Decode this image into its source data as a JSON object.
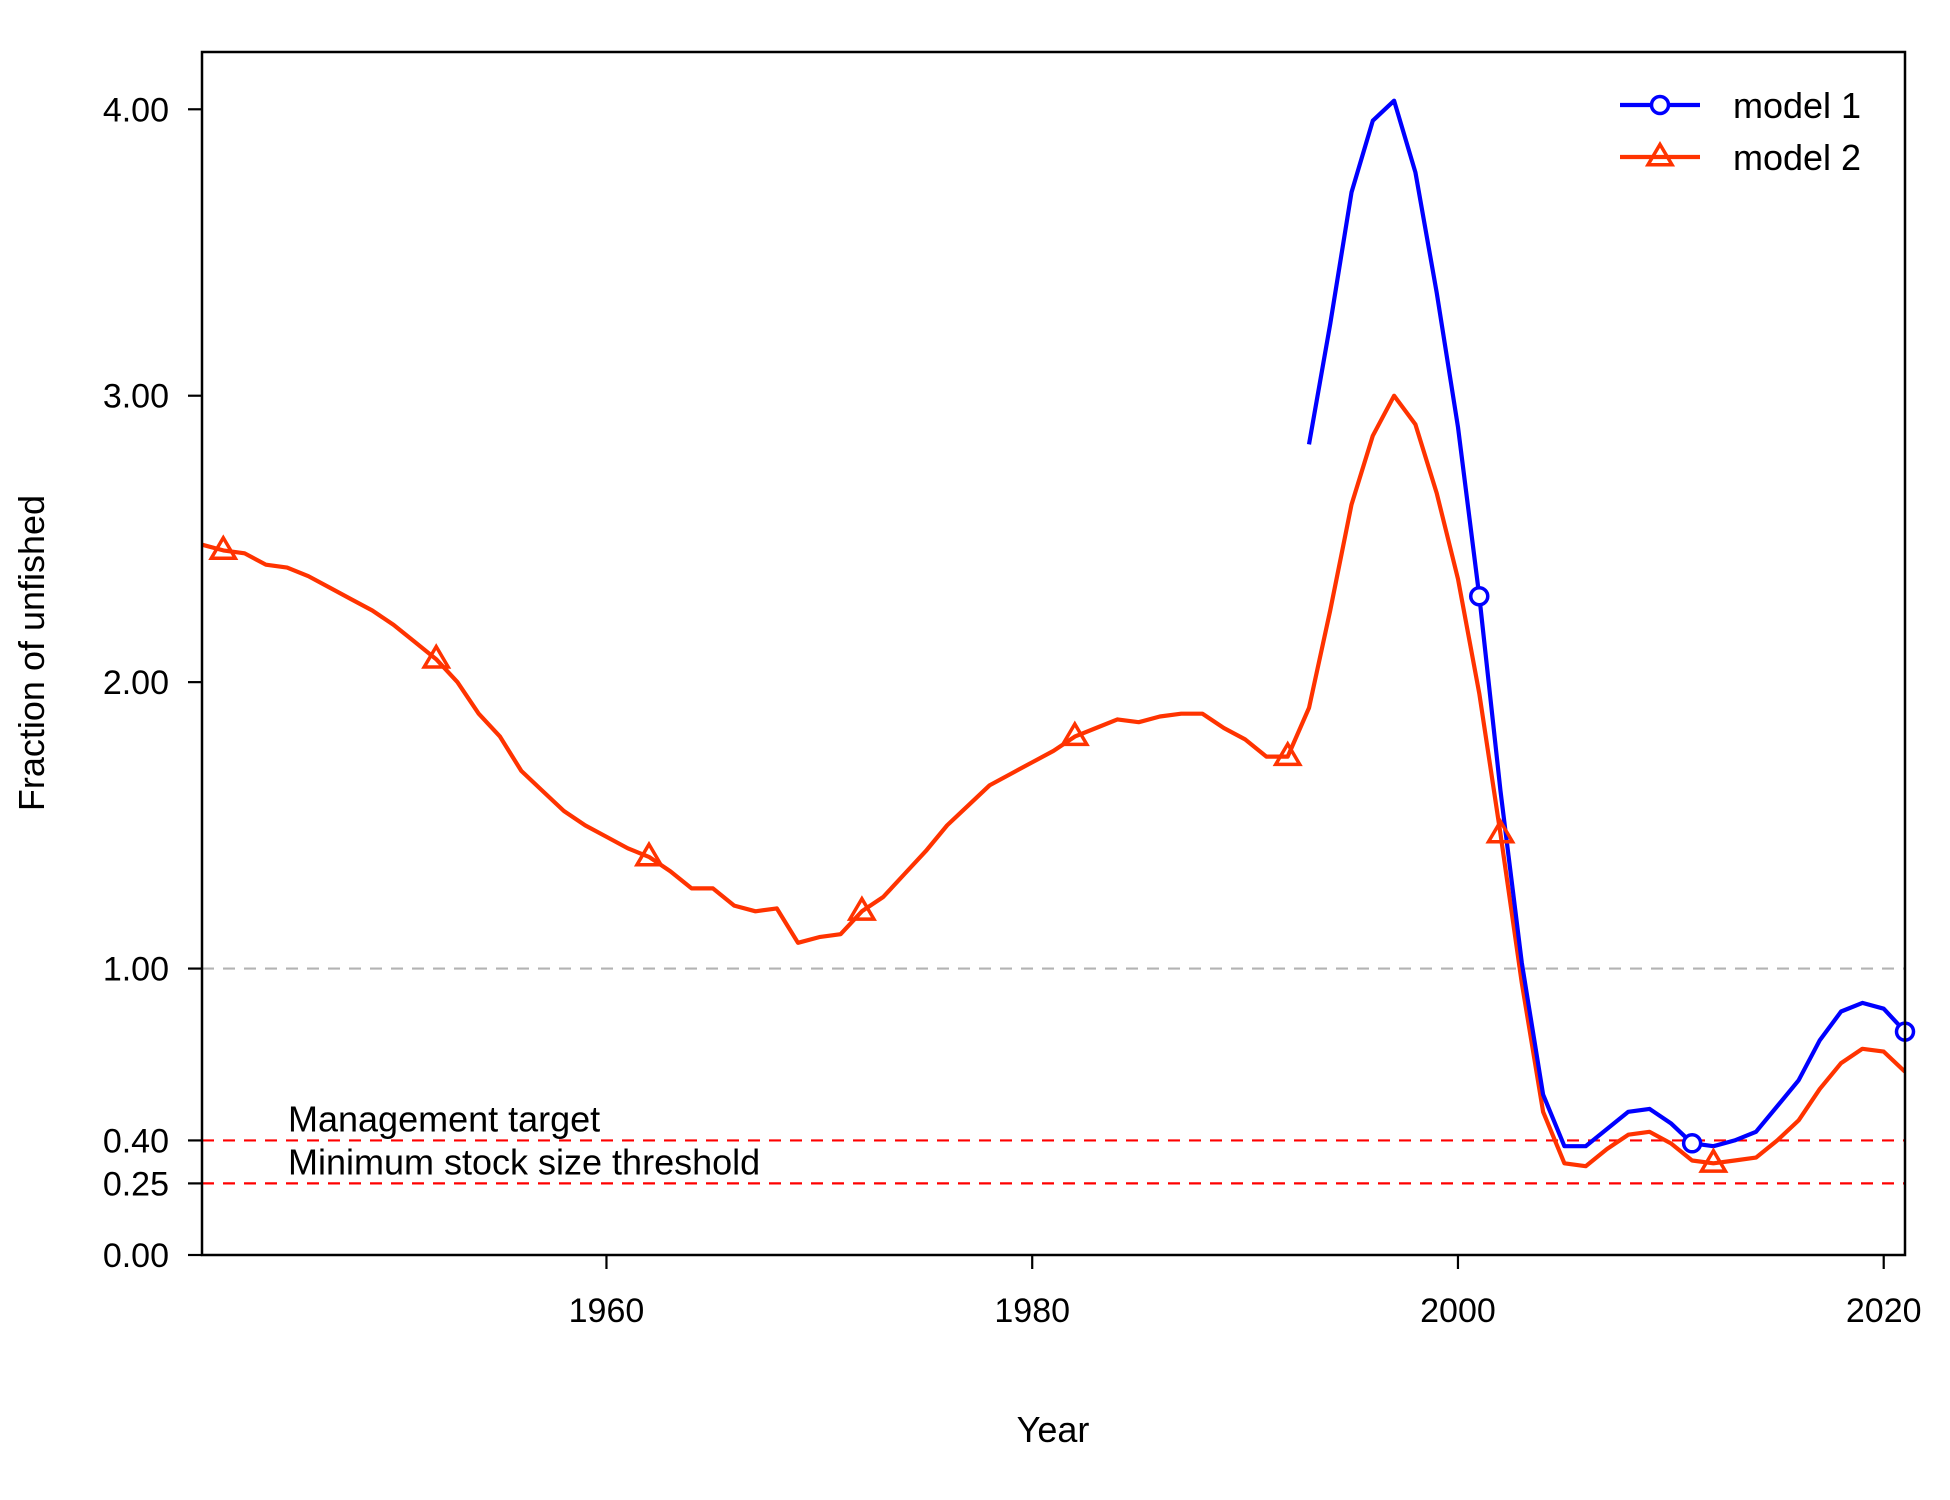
{
  "chart_data": {
    "type": "line",
    "xlabel": "Year",
    "ylabel": "Fraction of unfished",
    "xlim": [
      1941,
      2021
    ],
    "ylim": [
      0,
      4.2
    ],
    "x_ticks": [
      1960,
      1980,
      2000,
      2020
    ],
    "x_tick_labels": [
      "1960",
      "1980",
      "2000",
      "2020"
    ],
    "y_ticks": [
      0,
      0.25,
      0.4,
      1,
      2,
      3,
      4
    ],
    "y_tick_labels": [
      "0.00",
      "0.25",
      "0.40",
      "1.00",
      "2.00",
      "3.00",
      "4.00"
    ],
    "grid": false,
    "legend_position": "top-right",
    "reference_lines": [
      {
        "value": 1.0,
        "color": "#b3b3b3",
        "label": ""
      },
      {
        "value": 0.4,
        "color": "#ff0000",
        "label": "Management target"
      },
      {
        "value": 0.25,
        "color": "#ff0000",
        "label": "Minimum stock size threshold"
      }
    ],
    "series": [
      {
        "name": "model 1",
        "color": "#0000ff",
        "marker": "circle",
        "x": [
          1993,
          1994,
          1995,
          1996,
          1997,
          1998,
          1999,
          2000,
          2001,
          2002,
          2003,
          2004,
          2005,
          2006,
          2007,
          2008,
          2009,
          2010,
          2011,
          2012,
          2013,
          2014,
          2015,
          2016,
          2017,
          2018,
          2019,
          2020,
          2021
        ],
        "y": [
          2.83,
          3.25,
          3.71,
          3.96,
          4.03,
          3.78,
          3.36,
          2.89,
          2.3,
          1.62,
          1.02,
          0.56,
          0.38,
          0.38,
          0.44,
          0.5,
          0.51,
          0.46,
          0.39,
          0.38,
          0.4,
          0.43,
          0.52,
          0.61,
          0.75,
          0.85,
          0.88,
          0.86,
          0.78
        ],
        "marker_x": [
          2001,
          2011,
          2021
        ]
      },
      {
        "name": "model 2",
        "color": "#ff3300",
        "marker": "triangle",
        "x": [
          1941,
          1942,
          1943,
          1944,
          1945,
          1946,
          1947,
          1948,
          1949,
          1950,
          1951,
          1952,
          1953,
          1954,
          1955,
          1956,
          1957,
          1958,
          1959,
          1960,
          1961,
          1962,
          1963,
          1964,
          1965,
          1966,
          1967,
          1968,
          1969,
          1970,
          1971,
          1972,
          1973,
          1974,
          1975,
          1976,
          1977,
          1978,
          1979,
          1980,
          1981,
          1982,
          1983,
          1984,
          1985,
          1986,
          1987,
          1988,
          1989,
          1990,
          1991,
          1992,
          1993,
          1994,
          1995,
          1996,
          1997,
          1998,
          1999,
          2000,
          2001,
          2002,
          2003,
          2004,
          2005,
          2006,
          2007,
          2008,
          2009,
          2010,
          2011,
          2012,
          2013,
          2014,
          2015,
          2016,
          2017,
          2018,
          2019,
          2020,
          2021
        ],
        "y": [
          2.48,
          2.46,
          2.45,
          2.41,
          2.4,
          2.37,
          2.33,
          2.29,
          2.25,
          2.2,
          2.14,
          2.08,
          2.0,
          1.89,
          1.81,
          1.69,
          1.62,
          1.55,
          1.5,
          1.46,
          1.42,
          1.39,
          1.34,
          1.28,
          1.28,
          1.22,
          1.2,
          1.21,
          1.09,
          1.11,
          1.12,
          1.2,
          1.25,
          1.33,
          1.41,
          1.5,
          1.57,
          1.64,
          1.68,
          1.72,
          1.76,
          1.81,
          1.84,
          1.87,
          1.86,
          1.88,
          1.89,
          1.89,
          1.84,
          1.8,
          1.74,
          1.74,
          1.91,
          2.25,
          2.62,
          2.86,
          3.0,
          2.9,
          2.66,
          2.36,
          1.96,
          1.47,
          0.95,
          0.5,
          0.32,
          0.31,
          0.37,
          0.42,
          0.43,
          0.39,
          0.33,
          0.32,
          0.33,
          0.34,
          0.4,
          0.47,
          0.58,
          0.67,
          0.72,
          0.71,
          0.64
        ],
        "marker_x": [
          1942,
          1952,
          1962,
          1972,
          1982,
          1992,
          2002,
          2012
        ]
      }
    ]
  }
}
